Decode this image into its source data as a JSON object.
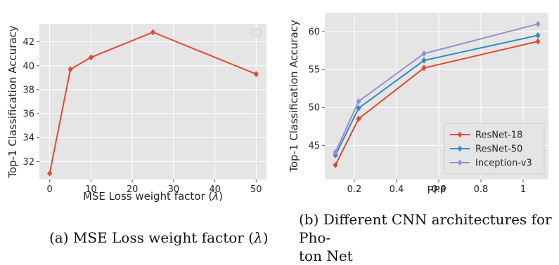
{
  "chart_data": [
    {
      "type": "line",
      "title": "",
      "xlabel": "MSE Loss weight factor (λ)",
      "ylabel": "Top-1 Classification Accuracy",
      "xlim": [
        -2.5,
        52.5
      ],
      "ylim": [
        30.5,
        43.5
      ],
      "xticks": [
        0,
        10,
        20,
        30,
        40,
        50
      ],
      "yticks": [
        32,
        34,
        36,
        38,
        40,
        42
      ],
      "grid": true,
      "legend": "top-right (empty)",
      "series": [
        {
          "name": "",
          "color": "#e24a33",
          "marker": "diamond",
          "x": [
            0,
            5,
            10,
            25,
            50
          ],
          "y": [
            31.0,
            39.7,
            40.7,
            42.8,
            39.3
          ]
        }
      ],
      "caption": "(a) MSE Loss weight factor (λ)"
    },
    {
      "type": "line",
      "title": "",
      "xlabel": "PPP",
      "ylabel": "Top-1 Classification Accuracy",
      "xlim": [
        0.06,
        1.12
      ],
      "ylim": [
        40.5,
        62.5
      ],
      "xticks": [
        0.2,
        0.4,
        0.6,
        0.8,
        1.0
      ],
      "yticks": [
        45,
        50,
        55,
        60
      ],
      "grid": true,
      "legend": "bottom-right",
      "series": [
        {
          "name": "ResNet-18",
          "color": "#e24a33",
          "marker": "diamond",
          "x": [
            0.11,
            0.22,
            0.53,
            1.07
          ],
          "y": [
            42.4,
            48.5,
            55.2,
            58.7
          ]
        },
        {
          "name": "ResNet-50",
          "color": "#348abd",
          "marker": "diamond",
          "x": [
            0.11,
            0.22,
            0.53,
            1.07
          ],
          "y": [
            43.7,
            49.9,
            56.2,
            59.5
          ]
        },
        {
          "name": "Inception-v3",
          "color": "#988ed5",
          "marker": "diamond",
          "x": [
            0.11,
            0.22,
            0.53,
            1.07
          ],
          "y": [
            44.1,
            50.8,
            57.1,
            61.0
          ]
        }
      ],
      "caption": "(b) Different CNN architectures for Photon Net",
      "caption_lines": [
        "(b) Different CNN architectures for Pho-",
        "ton Net"
      ]
    }
  ]
}
